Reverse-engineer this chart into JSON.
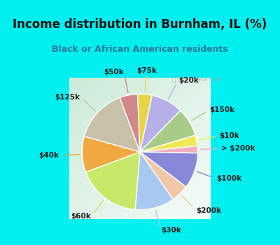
{
  "title": "Income distribution in Burnham, IL (%)",
  "subtitle": "Black or African American residents",
  "bg_cyan": "#00EFEF",
  "bg_chart_color1": "#c8ead8",
  "bg_chart_color2": "#f0f8f4",
  "labels": [
    "$20k",
    "$150k",
    "$10k",
    "> $200k",
    "$100k",
    "$200k",
    "$30k",
    "$60k",
    "$40k",
    "$125k",
    "$50k",
    "$75k"
  ],
  "values": [
    9,
    8,
    3,
    2,
    10,
    5,
    11,
    18,
    10,
    15,
    5,
    4
  ],
  "colors": [
    "#b8b0e8",
    "#a8cc88",
    "#f0e858",
    "#f0b0c0",
    "#8888d8",
    "#f0c8a8",
    "#a8c8f0",
    "#c8e868",
    "#f0a840",
    "#c8c0a8",
    "#d08888",
    "#e8d448"
  ],
  "start_angle": 78,
  "title_fontsize": 12,
  "subtitle_fontsize": 9,
  "label_fontsize": 7.5,
  "watermark": "City-Data.com"
}
